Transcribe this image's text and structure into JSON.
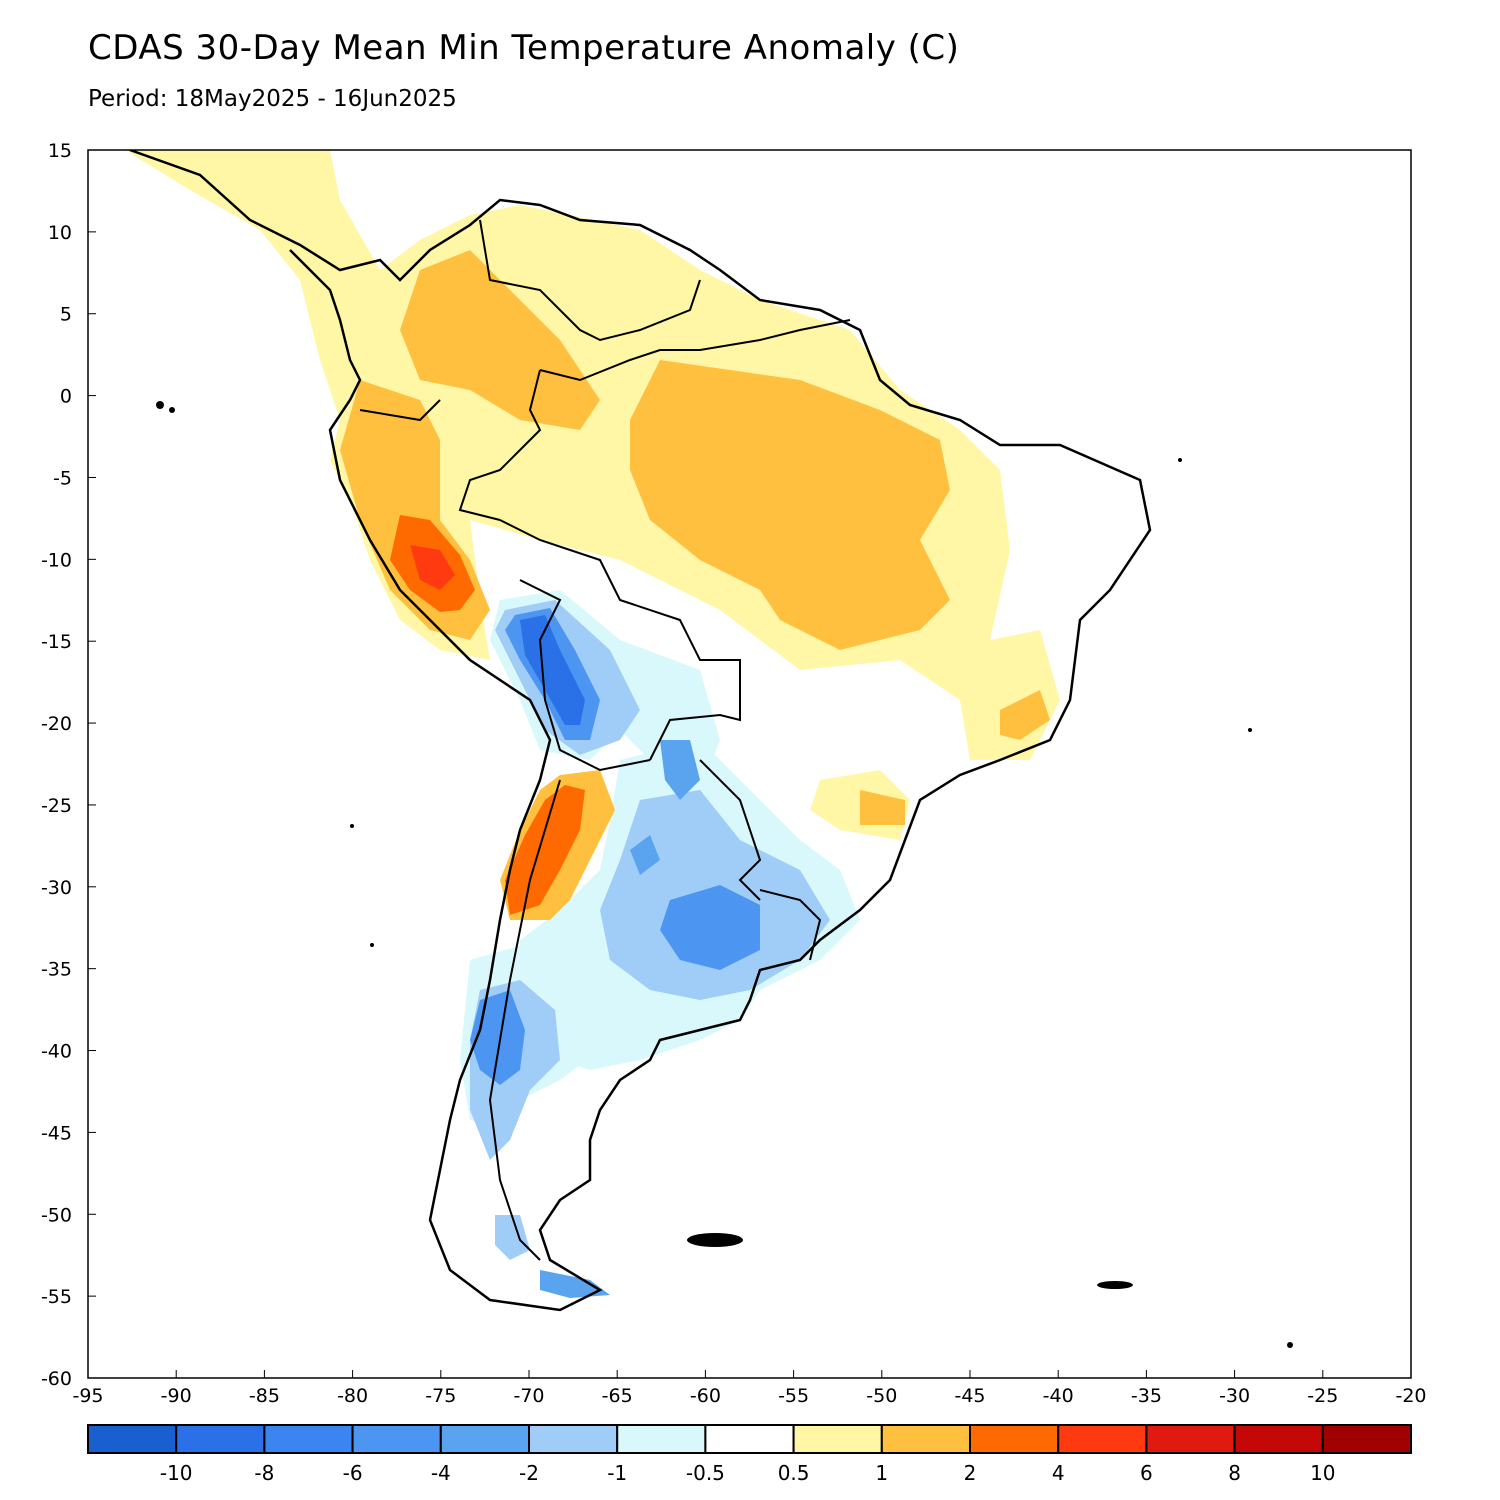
{
  "title": "CDAS 30-Day Mean Min Temperature Anomaly (C)",
  "subtitle": "Period: 18May2025 - 16Jun2025",
  "map": {
    "region": "South America",
    "lon_range": [
      -95,
      -20
    ],
    "lat_range": [
      -60,
      15
    ],
    "lon_ticks": [
      "-95",
      "-90",
      "-85",
      "-80",
      "-75",
      "-70",
      "-65",
      "-60",
      "-55",
      "-50",
      "-45",
      "-40",
      "-35",
      "-30",
      "-25",
      "-20"
    ],
    "lat_ticks": [
      "15",
      "10",
      "5",
      "0",
      "-5",
      "-10",
      "-15",
      "-20",
      "-25",
      "-30",
      "-35",
      "-40",
      "-45",
      "-50",
      "-55",
      "-60"
    ]
  },
  "colorbar": {
    "colors": [
      "#1a5fd0",
      "#2a70e6",
      "#3a85ef",
      "#4c96f2",
      "#5aa4ef",
      "#9fcdf7",
      "#d8f8fb",
      "#ffffff",
      "#fff7a6",
      "#ffc040",
      "#ff6a00",
      "#ff3a10",
      "#e01a10",
      "#c40808",
      "#a00000"
    ],
    "labels": [
      "-10",
      "-8",
      "-6",
      "-4",
      "-2",
      "-1",
      "-0.5",
      "0.5",
      "1",
      "2",
      "4",
      "6",
      "8",
      "10"
    ]
  }
}
